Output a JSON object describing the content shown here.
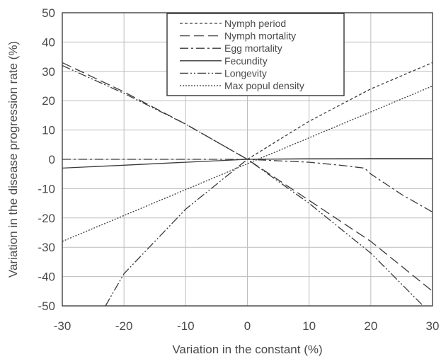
{
  "chart_data": {
    "type": "line",
    "xlabel": "Variation in the constant (%)",
    "ylabel": "Variation in the disease progression rate (%)",
    "xlim": [
      -30,
      30
    ],
    "ylim": [
      -50,
      50
    ],
    "xticks": [
      -30,
      -20,
      -10,
      0,
      10,
      20,
      30
    ],
    "yticks": [
      50,
      40,
      30,
      20,
      10,
      0,
      -10,
      -20,
      -30,
      -40,
      -50
    ],
    "grid": true,
    "legend_position": "top-center",
    "series": [
      {
        "name": "Nymph period",
        "dash": "4,3",
        "x": [
          0,
          10,
          20,
          30
        ],
        "y": [
          0,
          13,
          24,
          33
        ]
      },
      {
        "name": "Nymph mortality",
        "dash": "14,6",
        "x": [
          -30,
          -20,
          -10,
          0,
          10,
          20,
          30
        ],
        "y": [
          33,
          23,
          12,
          0,
          -14,
          -28,
          -45
        ]
      },
      {
        "name": "Egg mortality",
        "dash": "12,4,3,4",
        "x": [
          -30,
          -20,
          -10,
          0,
          5,
          10,
          15,
          19,
          20,
          25,
          30
        ],
        "y": [
          0,
          0,
          0,
          0,
          -0.5,
          -1,
          -2,
          -3,
          -5,
          -12,
          -18
        ]
      },
      {
        "name": "Fecundity",
        "dash": "",
        "x": [
          -30,
          -20,
          -10,
          0,
          10,
          20,
          30
        ],
        "y": [
          -3,
          -2,
          -1,
          0,
          0.2,
          0.3,
          0.3
        ]
      },
      {
        "name": "Longevity",
        "dash": "12,3,2,3,2,3",
        "x": [
          -23,
          -20,
          -15,
          -10,
          -5,
          0,
          10,
          20,
          28.5
        ],
        "y": [
          -50,
          -39,
          -28,
          -17,
          -8.5,
          0,
          -15,
          -32,
          -50
        ]
      },
      {
        "name": "Max popul density",
        "dash": "2,2",
        "x": [
          -30,
          30
        ],
        "y": [
          -28,
          25
        ]
      }
    ],
    "extra_lines": [
      {
        "of": "Longevity",
        "dash": "12,3,2,3,2,3",
        "x": [
          -30,
          -20,
          -10,
          0
        ],
        "y": [
          32,
          22.5,
          12,
          0
        ]
      }
    ]
  }
}
